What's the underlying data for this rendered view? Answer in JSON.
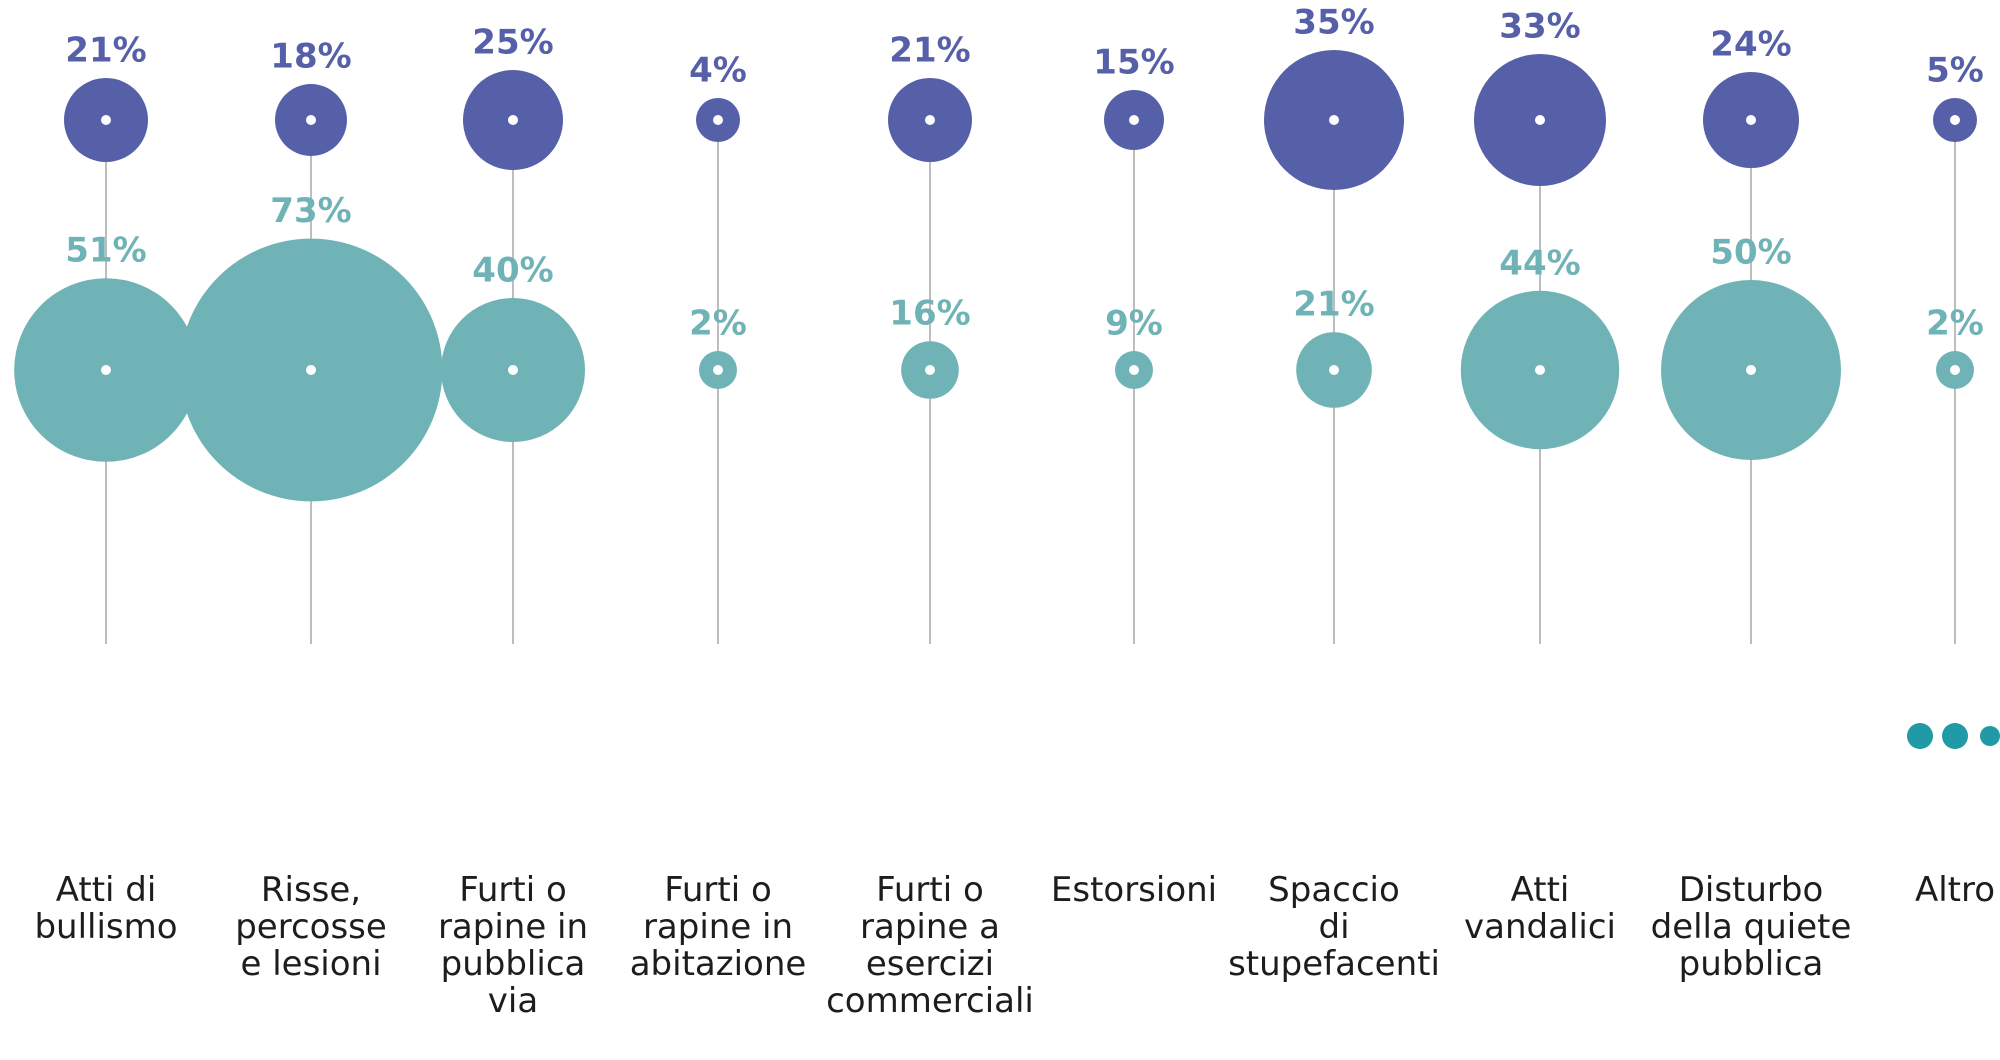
{
  "chart_data": {
    "type": "bubble",
    "categories": [
      "Atti di\nbullismo",
      "Risse,\npercosse\ne lesioni",
      "Furti o\nrapine in\npubblica\nvia",
      "Furti o\nrapine in\nabitazione",
      "Furti o\nrapine a\nesercizi\ncommerciali",
      "Estorsioni",
      "Spaccio\ndi\nstupefacenti",
      "Atti\nvandalici",
      "Disturbo\ndella quiete\npubblica",
      "Altro"
    ],
    "series": [
      {
        "color": "#5560a8",
        "values": [
          21,
          18,
          25,
          4,
          21,
          15,
          35,
          33,
          24,
          5
        ],
        "value_labels": [
          "21%",
          "18%",
          "25%",
          "4%",
          "21%",
          "15%",
          "35%",
          "33%",
          "24%",
          "5%"
        ]
      },
      {
        "color": "#6fb3b6",
        "values": [
          51,
          73,
          40,
          2,
          16,
          9,
          21,
          44,
          50,
          2
        ],
        "value_labels": [
          "51%",
          "73%",
          "40%",
          "2%",
          "16%",
          "9%",
          "21%",
          "44%",
          "50%",
          "2%"
        ]
      }
    ]
  }
}
